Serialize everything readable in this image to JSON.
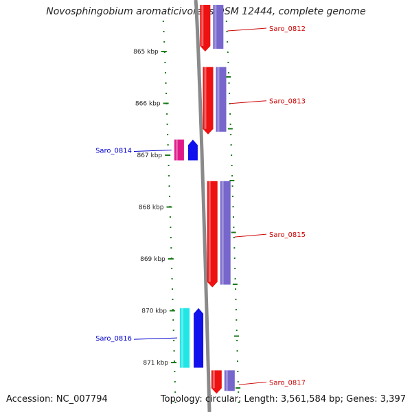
{
  "title": "Novosphingobium aromaticivorans DSM 12444, complete genome",
  "accession": "Accession: NC_007794",
  "stats": "Topology: circular; Length: 3,561,584 bp; Genes: 3,397",
  "ticks": [
    {
      "label": "865 kbp",
      "kb": 865
    },
    {
      "label": "866 kbp",
      "kb": 866
    },
    {
      "label": "867 kbp",
      "kb": 867
    },
    {
      "label": "868 kbp",
      "kb": 868
    },
    {
      "label": "869 kbp",
      "kb": 869
    },
    {
      "label": "870 kbp",
      "kb": 870
    },
    {
      "label": "871 kbp",
      "kb": 871
    }
  ],
  "genes": [
    {
      "name": "Saro_0812",
      "strand": "forward",
      "start_kb": 864.1,
      "end_kb": 865.0,
      "label_color": "#cc0000"
    },
    {
      "name": "Saro_0813",
      "strand": "forward",
      "start_kb": 865.3,
      "end_kb": 866.6,
      "label_color": "#cc0000"
    },
    {
      "name": "Saro_0814",
      "strand": "reverse",
      "start_kb": 866.7,
      "end_kb": 867.1,
      "label_color": "#0000cc"
    },
    {
      "name": "Saro_0815",
      "strand": "forward",
      "start_kb": 867.5,
      "end_kb": 869.55,
      "label_color": "#cc0000"
    },
    {
      "name": "Saro_0816",
      "strand": "reverse",
      "start_kb": 869.95,
      "end_kb": 871.1,
      "label_color": "#0000cc"
    },
    {
      "name": "Saro_0817",
      "strand": "forward",
      "start_kb": 871.15,
      "end_kb": 871.6,
      "label_color": "#cc0000"
    }
  ],
  "colors": {
    "backbone": "#8a8a8a",
    "tick": "#1a7a1a",
    "forward_gene": "#ee1111",
    "forward_cds": "#7766cc",
    "reverse_gene": "#1111ee",
    "reverse_cds": "#22e5e5"
  }
}
